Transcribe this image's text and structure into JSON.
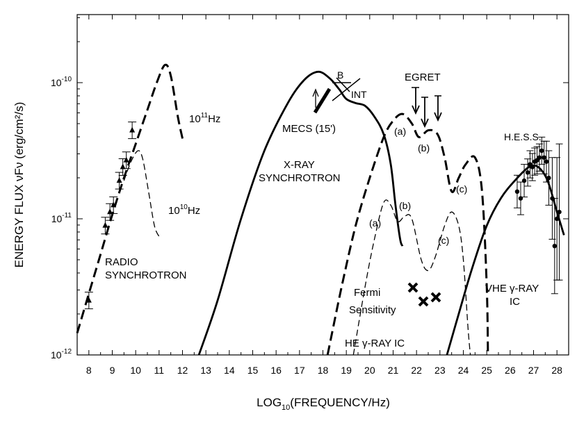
{
  "chart_data": {
    "type": "line",
    "title": "",
    "xlabel": "LOG",
    "xlabel_sub": "10",
    "xlabel_rest": "(FREQUENCY/Hz)",
    "ylabel": "ENERGY FLUX νFν (erg/cm²/s)",
    "xlim": [
      7.5,
      28.5
    ],
    "ylim_log10": [
      -12,
      -9.5
    ],
    "x_ticks": [
      8,
      9,
      10,
      11,
      12,
      13,
      14,
      15,
      16,
      17,
      18,
      19,
      20,
      21,
      22,
      23,
      24,
      25,
      26,
      27,
      28
    ],
    "y_ticks": [
      {
        "mantissa": "10",
        "exp": "-12",
        "value": -12
      },
      {
        "mantissa": "10",
        "exp": "-11",
        "value": -11
      },
      {
        "mantissa": "10",
        "exp": "-10",
        "value": -10
      }
    ],
    "series": [
      {
        "name": "radio synchrotron 10^11 Hz",
        "style": "dash-thick",
        "x": [
          7.5,
          8,
          8.5,
          9,
          9.5,
          10,
          10.5,
          10.9,
          11.25,
          11.5,
          11.8,
          12
        ],
        "y": [
          -11.84,
          -11.55,
          -11.26,
          -10.97,
          -10.7,
          -10.45,
          -10.2,
          -10.0,
          -9.87,
          -9.95,
          -10.25,
          -10.41
        ]
      },
      {
        "name": "radio synchrotron 10^10 Hz",
        "style": "dash-thin",
        "x": [
          9.5,
          9.8,
          10.1,
          10.3,
          10.55,
          10.8,
          11.0
        ],
        "y": [
          -10.72,
          -10.58,
          -10.5,
          -10.56,
          -10.8,
          -11.05,
          -11.13
        ]
      },
      {
        "name": "X-ray synchrotron",
        "style": "solid-thick",
        "x": [
          12.7,
          13.5,
          14.5,
          15.5,
          16.5,
          17.2,
          17.8,
          18.3,
          18.7,
          19.0,
          19.4,
          19.8,
          20.2,
          20.6,
          20.9,
          21.1,
          21.3,
          21.4
        ],
        "y": [
          -12,
          -11.6,
          -11.0,
          -10.5,
          -10.15,
          -9.98,
          -9.92,
          -9.97,
          -10.05,
          -10.12,
          -10.15,
          -10.17,
          -10.25,
          -10.38,
          -10.6,
          -10.9,
          -11.15,
          -11.2
        ]
      },
      {
        "name": "HE gamma-ray IC thin",
        "style": "dash-thin",
        "x": [
          19.3,
          19.8,
          20.2,
          20.6,
          20.9,
          21.2,
          21.5,
          21.8,
          22.2,
          22.5,
          22.8,
          23.2,
          23.5,
          23.8,
          24.0,
          24.2,
          24.3
        ],
        "y": [
          -12,
          -11.5,
          -11.15,
          -10.88,
          -10.9,
          -11.02,
          -10.98,
          -11.0,
          -11.3,
          -11.38,
          -11.28,
          -11.05,
          -10.95,
          -11.05,
          -11.3,
          -11.8,
          -12
        ]
      },
      {
        "name": "HE gamma-ray IC thick",
        "style": "dash-thick",
        "x": [
          18.2,
          18.8,
          19.4,
          20.0,
          20.6,
          21.0,
          21.4,
          21.8,
          22.1,
          22.5,
          22.9,
          23.2,
          23.5,
          23.8,
          24.1,
          24.5,
          24.8,
          25.0,
          25.05
        ],
        "y": [
          -12,
          -11.5,
          -11.05,
          -10.7,
          -10.4,
          -10.28,
          -10.23,
          -10.3,
          -10.4,
          -10.35,
          -10.38,
          -10.55,
          -10.8,
          -10.7,
          -10.6,
          -10.55,
          -10.8,
          -11.5,
          -12
        ]
      },
      {
        "name": "VHE gamma-ray IC",
        "style": "solid-thick",
        "x": [
          23.3,
          23.8,
          24.4,
          25,
          25.6,
          26.2,
          26.8,
          27.2,
          27.6,
          28,
          28.3
        ],
        "y": [
          -12,
          -11.7,
          -11.35,
          -11.05,
          -10.85,
          -10.72,
          -10.62,
          -10.62,
          -10.72,
          -10.95,
          -11.12
        ]
      }
    ],
    "radio_points": {
      "x": [
        8,
        8.7,
        8.9,
        9.05,
        9.3,
        9.45,
        9.6,
        9.85
      ],
      "y": [
        -11.6,
        -11.05,
        -10.95,
        -10.9,
        -10.72,
        -10.62,
        -10.57,
        -10.35
      ]
    },
    "hess_points": {
      "x": [
        26.3,
        26.45,
        26.6,
        26.75,
        26.85,
        26.95,
        27.05,
        27.15,
        27.25,
        27.35,
        27.45,
        27.55,
        27.65,
        27.8,
        27.9,
        28.0,
        28.1
      ],
      "y": [
        -10.8,
        -10.85,
        -10.72,
        -10.66,
        -10.6,
        -10.62,
        -10.58,
        -10.57,
        -10.55,
        -10.5,
        -10.55,
        -10.58,
        -10.7,
        -10.85,
        -11.2,
        -11.0,
        -10.95
      ],
      "errs": [
        0.12,
        0.12,
        0.12,
        0.1,
        0.1,
        0.1,
        0.1,
        0.1,
        0.1,
        0.1,
        0.12,
        0.15,
        0.2,
        0.3,
        0.35,
        0.45,
        0.5
      ]
    },
    "egret_limits": {
      "x": [
        22.2,
        22.6,
        23.1
      ],
      "y": [
        -10.04,
        -10.12,
        -10.1
      ]
    },
    "fermi_crosses": {
      "x": [
        22.2,
        22.55,
        22.9
      ],
      "y": [
        -11.5,
        -11.6,
        -11.57
      ]
    },
    "labels": {
      "f11_base": "10",
      "f11_exp": "11",
      "f11_unit": "Hz",
      "f10_base": "10",
      "f10_exp": "10",
      "f10_unit": "Hz",
      "radio1": "RADIO",
      "radio2": "SYNCHROTRON",
      "mecs": "MECS (15')",
      "b": "B",
      "int": "INT",
      "egret": "EGRET",
      "xray1": "X-RAY",
      "xray2": "SYNCHROTRON",
      "a_thick": "(a)",
      "b_thick": "(b)",
      "c_thick": "(c)",
      "a_thin": "(a)",
      "b_thin": "(b)",
      "c_thin": "(c)",
      "hess": "H.E.S.S.",
      "fermi1": "Fermi",
      "fermi2": "Sensitivity",
      "heic": "HE γ-RAY IC",
      "vhe1": "VHE γ-RAY",
      "vhe2": "IC"
    }
  }
}
